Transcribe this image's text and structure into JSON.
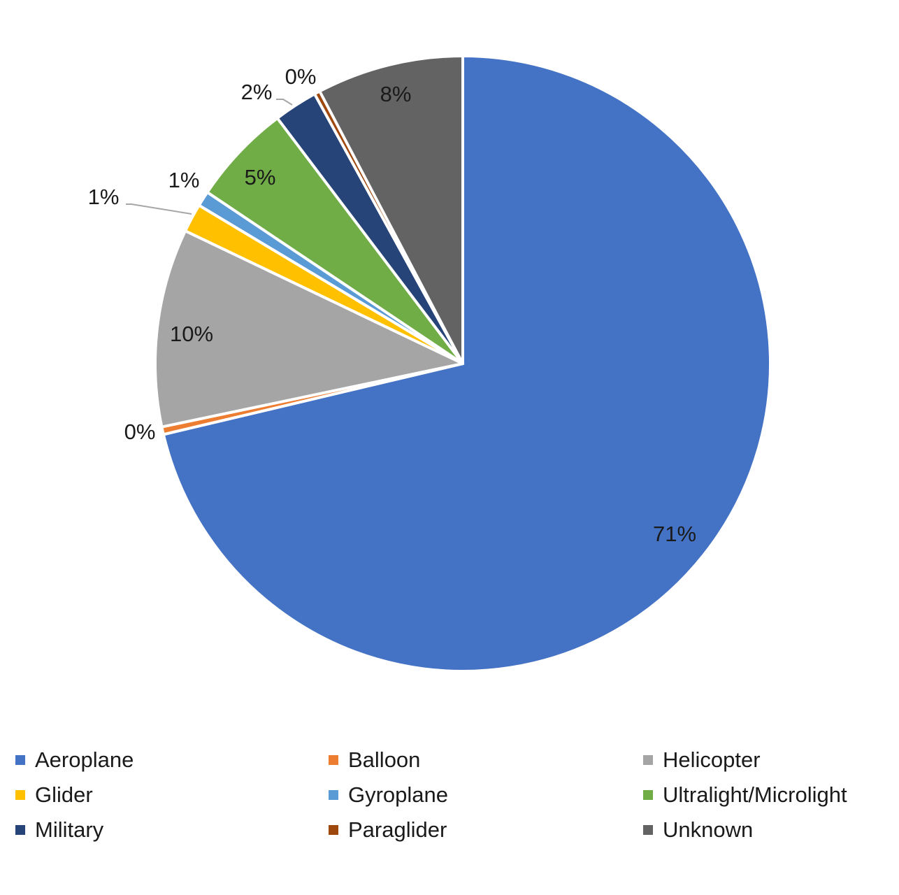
{
  "chart_data": {
    "type": "pie",
    "title": "",
    "legend_position": "bottom",
    "start_angle_deg": 0,
    "direction": "clockwise",
    "series": [
      {
        "slices": [
          {
            "label": "Aeroplane",
            "value": 71.3,
            "display": "71%",
            "color": "#4472C4"
          },
          {
            "label": "Balloon",
            "value": 0.4,
            "display": "0%",
            "color": "#ED7D31"
          },
          {
            "label": "Helicopter",
            "value": 10.4,
            "display": "10%",
            "color": "#A5A5A5"
          },
          {
            "label": "Glider",
            "value": 1.5,
            "display": "1%",
            "color": "#FFC000"
          },
          {
            "label": "Gyroplane",
            "value": 0.8,
            "display": "1%",
            "color": "#5B9BD5"
          },
          {
            "label": "Ultralight/Microlight",
            "value": 5.3,
            "display": "5%",
            "color": "#70AD47"
          },
          {
            "label": "Military",
            "value": 2.3,
            "display": "2%",
            "color": "#264478"
          },
          {
            "label": "Paraglider",
            "value": 0.3,
            "display": "0%",
            "color": "#9E480E"
          },
          {
            "label": "Unknown",
            "value": 7.7,
            "display": "8%",
            "color": "#636363"
          }
        ]
      }
    ],
    "legend_order": [
      "Aeroplane",
      "Balloon",
      "Helicopter",
      "Glider",
      "Gyroplane",
      "Ultralight/Microlight",
      "Military",
      "Paraglider",
      "Unknown"
    ]
  }
}
